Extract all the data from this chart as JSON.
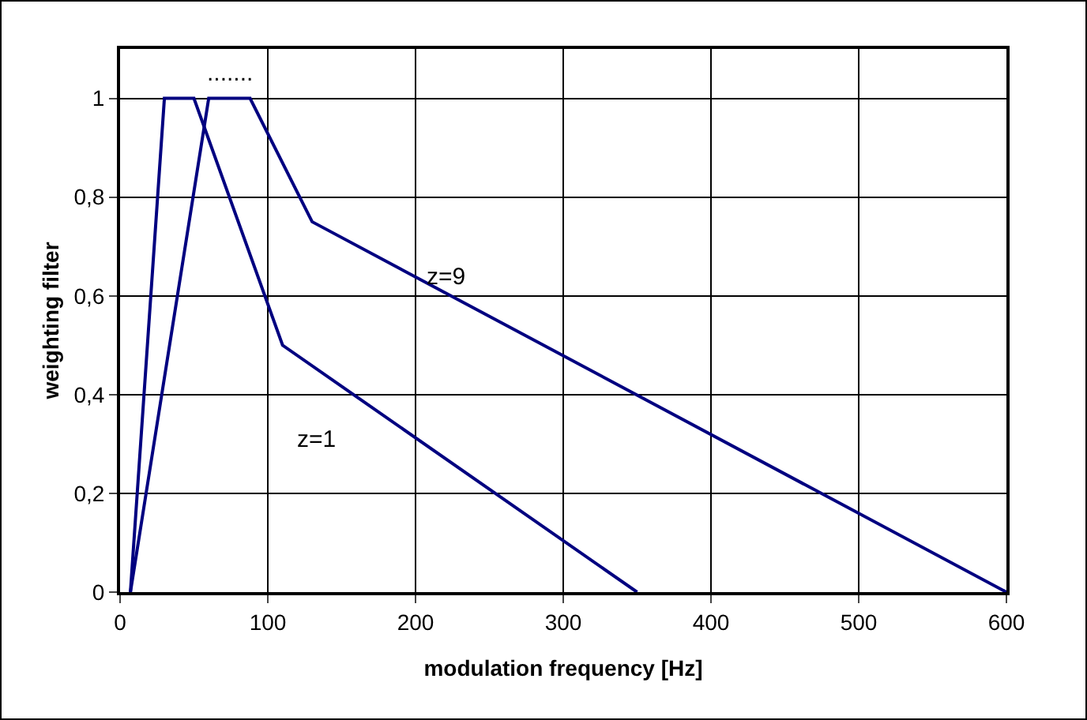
{
  "chart_data": {
    "type": "line",
    "xlabel": "modulation frequency [Hz]",
    "ylabel": "weighting filter",
    "xlim": [
      0,
      600
    ],
    "xticks": [
      0,
      100,
      200,
      300,
      400,
      500,
      600
    ],
    "ylim": [
      0,
      1.1
    ],
    "yticks": [
      {
        "value": 0,
        "label": "0"
      },
      {
        "value": 0.2,
        "label": "0,2"
      },
      {
        "value": 0.4,
        "label": "0,4"
      },
      {
        "value": 0.6,
        "label": "0,6"
      },
      {
        "value": 0.8,
        "label": "0,8"
      },
      {
        "value": 1,
        "label": "1"
      }
    ],
    "grid": true,
    "legend": false,
    "marker": "none",
    "line_style": "solid",
    "series": [
      {
        "name": "z=1",
        "color": "#000080",
        "x": [
          7,
          30,
          50,
          110,
          350
        ],
        "values": [
          0,
          1,
          1,
          0.5,
          0
        ]
      },
      {
        "name": "z=9",
        "color": "#000080",
        "x": [
          7,
          60,
          88,
          130,
          600
        ],
        "values": [
          0,
          1,
          1,
          0.75,
          0
        ]
      }
    ],
    "annotations": [
      "......."
    ]
  }
}
